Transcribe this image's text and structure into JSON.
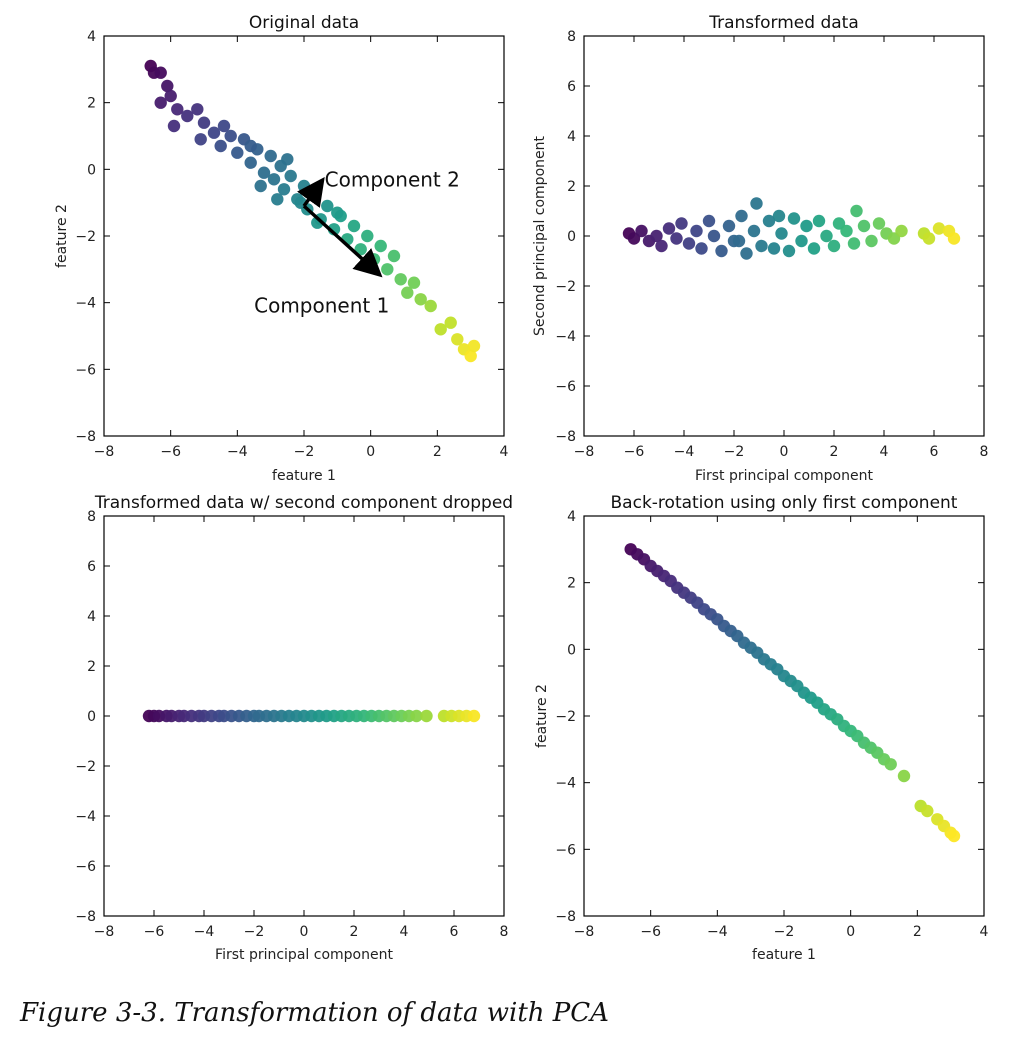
{
  "figure_caption": "Figure 3-3. Transformation of data with PCA",
  "colormap": [
    "#440154",
    "#482878",
    "#3e4989",
    "#31688e",
    "#26828e",
    "#1f9e89",
    "#35b779",
    "#6ece58",
    "#b5de2b",
    "#fde725"
  ],
  "chart_data": [
    {
      "type": "scatter",
      "title": "Original data",
      "xlabel": "feature 1",
      "ylabel": "feature 2",
      "xlim": [
        -8,
        4
      ],
      "ylim": [
        -8,
        4
      ],
      "xticks": [
        "−8",
        "−6",
        "−4",
        "−2",
        "0",
        "2",
        "4"
      ],
      "yticks": [
        "−8",
        "−6",
        "−4",
        "−2",
        "0",
        "2",
        "4"
      ],
      "grid": false,
      "color_by": "first principal component",
      "points": [
        [
          -6.6,
          3.1
        ],
        [
          -6.5,
          2.9
        ],
        [
          -6.3,
          2.9
        ],
        [
          -6.1,
          2.5
        ],
        [
          -6.3,
          2.0
        ],
        [
          -6.0,
          2.2
        ],
        [
          -5.8,
          1.8
        ],
        [
          -5.9,
          1.3
        ],
        [
          -5.5,
          1.6
        ],
        [
          -5.2,
          1.8
        ],
        [
          -5.0,
          1.4
        ],
        [
          -5.1,
          0.9
        ],
        [
          -4.7,
          1.1
        ],
        [
          -4.5,
          0.7
        ],
        [
          -4.2,
          1.0
        ],
        [
          -4.0,
          0.5
        ],
        [
          -3.8,
          0.9
        ],
        [
          -3.6,
          0.2
        ],
        [
          -3.4,
          0.6
        ],
        [
          -3.2,
          -0.1
        ],
        [
          -3.0,
          0.4
        ],
        [
          -2.9,
          -0.3
        ],
        [
          -2.7,
          0.1
        ],
        [
          -2.6,
          -0.6
        ],
        [
          -2.4,
          -0.2
        ],
        [
          -2.2,
          -0.9
        ],
        [
          -2.0,
          -0.5
        ],
        [
          -1.9,
          -1.2
        ],
        [
          -1.7,
          -0.8
        ],
        [
          -1.5,
          -1.5
        ],
        [
          -1.3,
          -1.1
        ],
        [
          -1.1,
          -1.8
        ],
        [
          -0.9,
          -1.4
        ],
        [
          -0.7,
          -2.1
        ],
        [
          -0.5,
          -1.7
        ],
        [
          -0.3,
          -2.4
        ],
        [
          -0.1,
          -2.0
        ],
        [
          0.1,
          -2.7
        ],
        [
          0.3,
          -2.3
        ],
        [
          0.5,
          -3.0
        ],
        [
          0.7,
          -2.6
        ],
        [
          0.9,
          -3.3
        ],
        [
          1.1,
          -3.7
        ],
        [
          1.3,
          -3.4
        ],
        [
          1.5,
          -3.9
        ],
        [
          1.8,
          -4.1
        ],
        [
          2.1,
          -4.8
        ],
        [
          2.4,
          -4.6
        ],
        [
          2.6,
          -5.1
        ],
        [
          2.8,
          -5.4
        ],
        [
          3.0,
          -5.6
        ],
        [
          3.1,
          -5.3
        ],
        [
          -3.3,
          -0.5
        ],
        [
          -2.8,
          -0.9
        ],
        [
          -3.6,
          0.7
        ],
        [
          -4.4,
          1.3
        ],
        [
          -2.1,
          -1.0
        ],
        [
          -1.0,
          -1.3
        ],
        [
          -2.5,
          0.3
        ],
        [
          -1.6,
          -1.6
        ]
      ],
      "annotations": [
        {
          "text": "Component 2",
          "from": [
            -2.0,
            -1.1
          ],
          "to": [
            -1.5,
            -0.4
          ]
        },
        {
          "text": "Component 1",
          "from": [
            -2.0,
            -1.1
          ],
          "to": [
            0.2,
            -3.1
          ]
        }
      ]
    },
    {
      "type": "scatter",
      "title": "Transformed data",
      "xlabel": "First principal component",
      "ylabel": "Second principal component",
      "xlim": [
        -8,
        8
      ],
      "ylim": [
        -8,
        8
      ],
      "xticks": [
        "−8",
        "−6",
        "−4",
        "−2",
        "0",
        "2",
        "4",
        "6",
        "8"
      ],
      "yticks": [
        "−8",
        "−6",
        "−4",
        "−2",
        "0",
        "2",
        "4",
        "6",
        "8"
      ],
      "grid": false,
      "color_by": "first principal component",
      "points": [
        [
          -6.2,
          0.1
        ],
        [
          -6.0,
          -0.1
        ],
        [
          -5.7,
          0.2
        ],
        [
          -5.4,
          -0.2
        ],
        [
          -5.1,
          0.0
        ],
        [
          -4.9,
          -0.4
        ],
        [
          -4.6,
          0.3
        ],
        [
          -4.3,
          -0.1
        ],
        [
          -4.1,
          0.5
        ],
        [
          -3.8,
          -0.3
        ],
        [
          -3.5,
          0.2
        ],
        [
          -3.3,
          -0.5
        ],
        [
          -3.0,
          0.6
        ],
        [
          -2.8,
          0.0
        ],
        [
          -2.5,
          -0.6
        ],
        [
          -2.2,
          0.4
        ],
        [
          -2.0,
          -0.2
        ],
        [
          -1.7,
          0.8
        ],
        [
          -1.5,
          -0.7
        ],
        [
          -1.2,
          0.2
        ],
        [
          -1.1,
          1.3
        ],
        [
          -0.9,
          -0.4
        ],
        [
          -0.6,
          0.6
        ],
        [
          -0.4,
          -0.5
        ],
        [
          -0.1,
          0.1
        ],
        [
          0.2,
          -0.6
        ],
        [
          0.4,
          0.7
        ],
        [
          0.7,
          -0.2
        ],
        [
          0.9,
          0.4
        ],
        [
          1.2,
          -0.5
        ],
        [
          1.4,
          0.6
        ],
        [
          1.7,
          0.0
        ],
        [
          2.0,
          -0.4
        ],
        [
          2.2,
          0.5
        ],
        [
          2.5,
          0.2
        ],
        [
          2.8,
          -0.3
        ],
        [
          2.9,
          1.0
        ],
        [
          3.2,
          0.4
        ],
        [
          3.5,
          -0.2
        ],
        [
          3.8,
          0.5
        ],
        [
          4.1,
          0.1
        ],
        [
          4.4,
          -0.1
        ],
        [
          4.7,
          0.2
        ],
        [
          5.6,
          0.1
        ],
        [
          5.8,
          -0.1
        ],
        [
          6.2,
          0.3
        ],
        [
          6.6,
          0.2
        ],
        [
          6.8,
          -0.1
        ],
        [
          -1.8,
          -0.2
        ],
        [
          -0.2,
          0.8
        ]
      ]
    },
    {
      "type": "scatter",
      "title": "Transformed data w/ second component dropped",
      "xlabel": "First principal component",
      "ylabel": "",
      "xlim": [
        -8,
        8
      ],
      "ylim": [
        -8,
        8
      ],
      "xticks": [
        "−8",
        "−6",
        "−4",
        "−2",
        "0",
        "2",
        "4",
        "6",
        "8"
      ],
      "yticks": [
        "−8",
        "−6",
        "−4",
        "−2",
        "0",
        "2",
        "4",
        "6",
        "8"
      ],
      "grid": false,
      "color_by": "first principal component",
      "points": [
        [
          -6.2,
          0
        ],
        [
          -6.0,
          0
        ],
        [
          -5.8,
          0
        ],
        [
          -5.5,
          0
        ],
        [
          -5.3,
          0
        ],
        [
          -5.0,
          0
        ],
        [
          -4.8,
          0
        ],
        [
          -4.5,
          0
        ],
        [
          -4.2,
          0
        ],
        [
          -4.0,
          0
        ],
        [
          -3.7,
          0
        ],
        [
          -3.4,
          0
        ],
        [
          -3.2,
          0
        ],
        [
          -2.9,
          0
        ],
        [
          -2.6,
          0
        ],
        [
          -2.3,
          0
        ],
        [
          -2.0,
          0
        ],
        [
          -1.8,
          0
        ],
        [
          -1.5,
          0
        ],
        [
          -1.2,
          0
        ],
        [
          -0.9,
          0
        ],
        [
          -0.6,
          0
        ],
        [
          -0.3,
          0
        ],
        [
          0.0,
          0
        ],
        [
          0.3,
          0
        ],
        [
          0.6,
          0
        ],
        [
          0.9,
          0
        ],
        [
          1.2,
          0
        ],
        [
          1.5,
          0
        ],
        [
          1.8,
          0
        ],
        [
          2.1,
          0
        ],
        [
          2.4,
          0
        ],
        [
          2.7,
          0
        ],
        [
          3.0,
          0
        ],
        [
          3.3,
          0
        ],
        [
          3.6,
          0
        ],
        [
          3.9,
          0
        ],
        [
          4.2,
          0
        ],
        [
          4.5,
          0
        ],
        [
          4.9,
          0
        ],
        [
          5.6,
          0
        ],
        [
          5.9,
          0
        ],
        [
          6.2,
          0
        ],
        [
          6.5,
          0
        ],
        [
          6.8,
          0
        ]
      ]
    },
    {
      "type": "scatter",
      "title": "Back-rotation using only first component",
      "xlabel": "feature 1",
      "ylabel": "feature 2",
      "xlim": [
        -8,
        4
      ],
      "ylim": [
        -8,
        4
      ],
      "xticks": [
        "−8",
        "−6",
        "−4",
        "−2",
        "0",
        "2",
        "4"
      ],
      "yticks": [
        "−8",
        "−6",
        "−4",
        "−2",
        "0",
        "2",
        "4"
      ],
      "grid": false,
      "color_by": "first principal component",
      "points": [
        [
          -6.6,
          3.0
        ],
        [
          -6.4,
          2.85
        ],
        [
          -6.2,
          2.7
        ],
        [
          -6.0,
          2.5
        ],
        [
          -5.8,
          2.35
        ],
        [
          -5.6,
          2.2
        ],
        [
          -5.4,
          2.05
        ],
        [
          -5.2,
          1.85
        ],
        [
          -5.0,
          1.7
        ],
        [
          -4.8,
          1.55
        ],
        [
          -4.6,
          1.4
        ],
        [
          -4.4,
          1.2
        ],
        [
          -4.2,
          1.05
        ],
        [
          -4.0,
          0.9
        ],
        [
          -3.8,
          0.7
        ],
        [
          -3.6,
          0.55
        ],
        [
          -3.4,
          0.4
        ],
        [
          -3.2,
          0.2
        ],
        [
          -3.0,
          0.05
        ],
        [
          -2.8,
          -0.1
        ],
        [
          -2.6,
          -0.3
        ],
        [
          -2.4,
          -0.45
        ],
        [
          -2.2,
          -0.6
        ],
        [
          -2.0,
          -0.8
        ],
        [
          -1.8,
          -0.95
        ],
        [
          -1.6,
          -1.1
        ],
        [
          -1.4,
          -1.3
        ],
        [
          -1.2,
          -1.45
        ],
        [
          -1.0,
          -1.6
        ],
        [
          -0.8,
          -1.8
        ],
        [
          -0.6,
          -1.95
        ],
        [
          -0.4,
          -2.1
        ],
        [
          -0.2,
          -2.3
        ],
        [
          0.0,
          -2.45
        ],
        [
          0.2,
          -2.6
        ],
        [
          0.4,
          -2.8
        ],
        [
          0.6,
          -2.95
        ],
        [
          0.8,
          -3.1
        ],
        [
          1.0,
          -3.3
        ],
        [
          1.2,
          -3.45
        ],
        [
          1.6,
          -3.8
        ],
        [
          2.1,
          -4.7
        ],
        [
          2.3,
          -4.85
        ],
        [
          2.6,
          -5.1
        ],
        [
          2.8,
          -5.3
        ],
        [
          3.0,
          -5.5
        ],
        [
          3.1,
          -5.6
        ]
      ]
    }
  ]
}
